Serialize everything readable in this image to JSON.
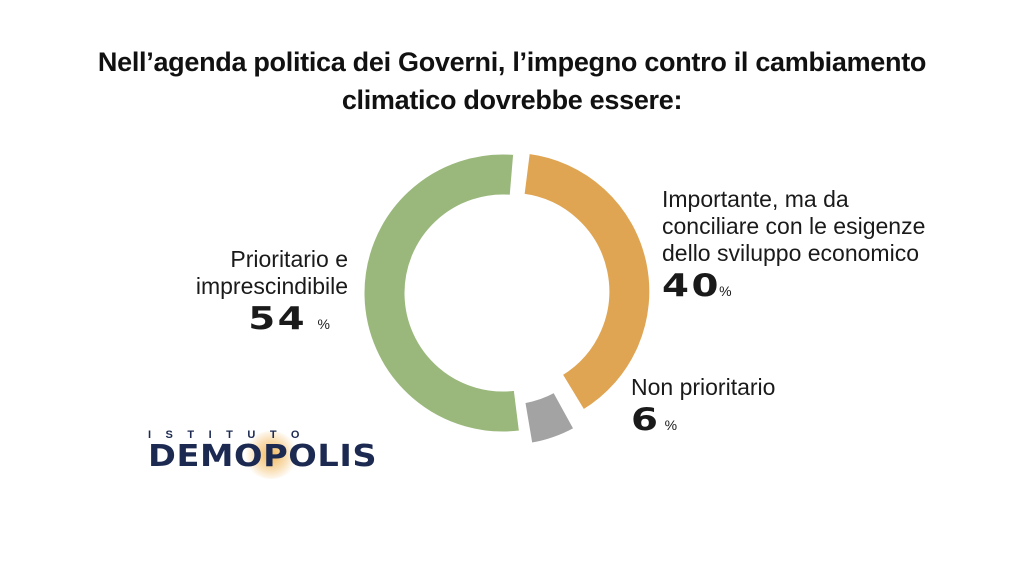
{
  "title_lines": [
    "Nell’agenda politica dei Governi, l’impegno contro il cambiamento",
    "climatico dovrebbe essere:"
  ],
  "chart_data": {
    "type": "pie",
    "subtype": "donut",
    "title": "Nell’agenda politica dei Governi, l’impegno contro il cambiamento climatico dovrebbe essere:",
    "unit": "%",
    "slices": [
      {
        "label": "Importante, ma da conciliare con le esigenze dello sviluppo economico",
        "label_lines": [
          "Importante, ma da",
          "conciliare con le esigenze",
          "dello sviluppo economico"
        ],
        "value": 40,
        "color": "#DFA553"
      },
      {
        "label": "Non prioritario",
        "label_lines": [
          "Non prioritario"
        ],
        "value": 6,
        "color": "#A3A3A3"
      },
      {
        "label": "Prioritario e imprescindibile",
        "label_lines": [
          "Prioritario e",
          "imprescindibile"
        ],
        "value": 54,
        "color": "#9AB87C"
      }
    ],
    "exploded": true
  },
  "logo": {
    "top_text": "ISTITUTO",
    "main_text": "DEMOPOLIS"
  }
}
